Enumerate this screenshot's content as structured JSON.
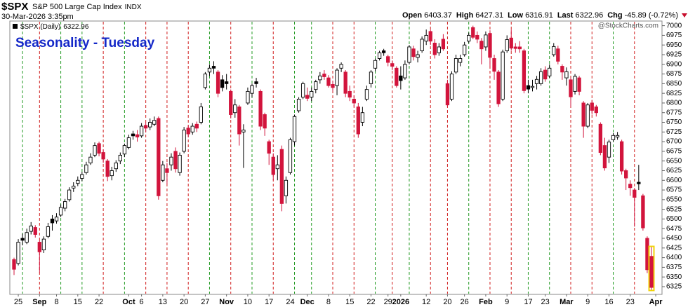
{
  "header": {
    "symbol": "$SPX",
    "name": "S&P 500 Large Cap Index",
    "exchange": "INDX",
    "date": "30-Mar-2026 3:35pm",
    "open_label": "Open",
    "high_label": "High",
    "low_label": "Low",
    "last_label": "Last",
    "change_label": "Chg",
    "change": -45.89,
    "change_pct_label": "(-0.72%)",
    "watermark": "@StockCharts.com"
  },
  "chart_data": {
    "type": "candlestick",
    "title": "Seasonality - Tuesday",
    "categories": [
      null,
      "25",
      null,
      null,
      null,
      null,
      "Sep",
      null,
      null,
      null,
      "8",
      null,
      null,
      null,
      null,
      "15",
      null,
      null,
      null,
      null,
      "22",
      null,
      null,
      null,
      null,
      null,
      null,
      "Oct",
      null,
      null,
      "6",
      null,
      null,
      null,
      null,
      "13",
      null,
      null,
      null,
      null,
      "20",
      null,
      null,
      null,
      null,
      "27",
      null,
      null,
      null,
      null,
      "Nov",
      null,
      null,
      null,
      null,
      "10",
      null,
      null,
      null,
      null,
      "17",
      null,
      null,
      null,
      null,
      "24",
      null,
      null,
      null,
      "Dec",
      null,
      null,
      null,
      null,
      "8",
      null,
      null,
      null,
      null,
      "15",
      null,
      null,
      null,
      null,
      "22",
      null,
      null,
      null,
      "29",
      null,
      null,
      "2026",
      null,
      null,
      null,
      null,
      null,
      "12",
      null,
      null,
      null,
      null,
      "20",
      null,
      null,
      null,
      "26",
      null,
      null,
      null,
      null,
      "Feb",
      null,
      null,
      null,
      null,
      "9",
      null,
      null,
      null,
      null,
      "17",
      null,
      null,
      null,
      "23",
      null,
      null,
      null,
      null,
      "Mar",
      null,
      null,
      null,
      null,
      "9",
      null,
      null,
      null,
      null,
      "16",
      null,
      null,
      null,
      null,
      "23",
      null,
      null,
      null,
      null,
      null,
      "Apr"
    ],
    "series": [
      {
        "name": "$SPX (Daily)",
        "open": [
          6395,
          6385,
          6450,
          6440,
          6468,
          6478,
          6440,
          6420,
          6455,
          6500,
          6495,
          6510,
          6528,
          6550,
          6580,
          6592,
          6605,
          6620,
          6645,
          6665,
          6695,
          6672,
          6650,
          6612,
          6630,
          6650,
          6668,
          6685,
          6720,
          6718,
          6715,
          6742,
          6738,
          6745,
          6760,
          6600,
          6630,
          6640,
          6675,
          6620,
          6675,
          6735,
          6725,
          6745,
          6750,
          6840,
          6880,
          6895,
          6880,
          6860,
          6855,
          6830,
          6775,
          6790,
          6725,
          6800,
          6825,
          6855,
          6830,
          6770,
          6700,
          6660,
          6630,
          6680,
          6560,
          6620,
          6700,
          6780,
          6815,
          6820,
          6815,
          6835,
          6860,
          6875,
          6865,
          6848,
          6845,
          6890,
          6880,
          6830,
          6810,
          6790,
          6750,
          6810,
          6850,
          6890,
          6915,
          6935,
          6920,
          6902,
          6890,
          6870,
          6865,
          6905,
          6940,
          6918,
          6935,
          6960,
          6985,
          6955,
          6930,
          6965,
          6850,
          6810,
          6880,
          6905,
          6925,
          6960,
          6995,
          6975,
          6960,
          6945,
          6980,
          6915,
          6880,
          6810,
          6935,
          6968,
          6945,
          6945,
          6935,
          6845,
          6840,
          6850,
          6850,
          6885,
          6870,
          6925,
          6940,
          6895,
          6865,
          6860,
          6830,
          6865,
          6800,
          6740,
          6800,
          6790,
          6745,
          6690,
          6660,
          6705,
          6712,
          6700,
          6625,
          6590,
          6575,
          6595,
          6560,
          6450,
          6403.37,
          null
        ],
        "high": [
          6400,
          6448,
          6462,
          6475,
          6492,
          6484,
          6445,
          6455,
          6490,
          6510,
          6515,
          6538,
          6552,
          6582,
          6595,
          6610,
          6622,
          6648,
          6670,
          6698,
          6700,
          6680,
          6655,
          6635,
          6652,
          6672,
          6695,
          6718,
          6728,
          6730,
          6748,
          6750,
          6760,
          6765,
          6765,
          6650,
          6645,
          6670,
          6685,
          6672,
          6738,
          6742,
          6748,
          6752,
          6800,
          6880,
          6900,
          6908,
          6885,
          6872,
          6875,
          6835,
          6810,
          6795,
          6745,
          6840,
          6850,
          6865,
          6835,
          6775,
          6705,
          6670,
          6665,
          6690,
          6610,
          6710,
          6770,
          6815,
          6855,
          6840,
          6840,
          6860,
          6880,
          6885,
          6872,
          6858,
          6890,
          6905,
          6885,
          6845,
          6820,
          6800,
          6790,
          6845,
          6885,
          6915,
          6935,
          6940,
          6925,
          6910,
          6895,
          6895,
          6910,
          6950,
          6948,
          6935,
          6972,
          6990,
          6990,
          6965,
          6955,
          6978,
          6860,
          6882,
          6925,
          6925,
          6958,
          6982,
          7000,
          6985,
          6968,
          6985,
          6988,
          6925,
          6885,
          6938,
          6975,
          6990,
          6955,
          6960,
          6940,
          6860,
          6860,
          6870,
          6890,
          6895,
          6900,
          6955,
          6948,
          6900,
          6892,
          6865,
          6875,
          6870,
          6805,
          6800,
          6808,
          6795,
          6750,
          6710,
          6705,
          6722,
          6725,
          6705,
          6630,
          6600,
          6580,
          6640,
          6565,
          6455,
          6427.31,
          null
        ],
        "low": [
          6355,
          6380,
          6432,
          6435,
          6460,
          6452,
          6362,
          6412,
          6450,
          6470,
          6488,
          6505,
          6520,
          6545,
          6570,
          6585,
          6598,
          6615,
          6640,
          6660,
          6662,
          6645,
          6598,
          6600,
          6622,
          6642,
          6660,
          6680,
          6705,
          6700,
          6710,
          6725,
          6730,
          6740,
          6550,
          6595,
          6590,
          6625,
          6620,
          6612,
          6670,
          6712,
          6718,
          6725,
          6745,
          6835,
          6870,
          6875,
          6815,
          6830,
          6835,
          6760,
          6762,
          6690,
          6632,
          6795,
          6815,
          6840,
          6730,
          6715,
          6640,
          6600,
          6600,
          6520,
          6540,
          6615,
          6690,
          6775,
          6810,
          6805,
          6805,
          6825,
          6850,
          6860,
          6840,
          6830,
          6820,
          6880,
          6815,
          6805,
          6790,
          6710,
          6740,
          6805,
          6840,
          6882,
          6910,
          6922,
          6895,
          6885,
          6840,
          6835,
          6860,
          6900,
          6910,
          6905,
          6930,
          6950,
          6950,
          6915,
          6922,
          6935,
          6790,
          6805,
          6875,
          6895,
          6920,
          6955,
          6965,
          6955,
          6900,
          6935,
          6895,
          6860,
          6790,
          6805,
          6930,
          6935,
          6930,
          6930,
          6825,
          6825,
          6830,
          6835,
          6845,
          6855,
          6865,
          6920,
          6900,
          6860,
          6845,
          6790,
          6822,
          6820,
          6710,
          6735,
          6770,
          6765,
          6665,
          6625,
          6645,
          6700,
          6705,
          6615,
          6575,
          6560,
          6480,
          6575,
          6470,
          6360,
          6316.91,
          null
        ],
        "close": [
          6370,
          6440,
          6445,
          6465,
          6482,
          6460,
          6415,
          6448,
          6480,
          6490,
          6505,
          6530,
          6545,
          6575,
          6585,
          6600,
          6615,
          6640,
          6660,
          6690,
          6670,
          6655,
          6610,
          6625,
          6645,
          6665,
          6690,
          6710,
          6715,
          6712,
          6740,
          6735,
          6750,
          6755,
          6560,
          6640,
          6620,
          6660,
          6630,
          6665,
          6730,
          6720,
          6740,
          6735,
          6790,
          6875,
          6890,
          6890,
          6825,
          6840,
          6850,
          6770,
          6795,
          6720,
          6730,
          6830,
          6845,
          6850,
          6740,
          6735,
          6670,
          6615,
          6640,
          6540,
          6600,
          6705,
          6765,
          6810,
          6850,
          6812,
          6830,
          6855,
          6870,
          6868,
          6845,
          6840,
          6885,
          6900,
          6825,
          6815,
          6800,
          6720,
          6775,
          6835,
          6880,
          6910,
          6930,
          6930,
          6905,
          6895,
          6845,
          6858,
          6900,
          6945,
          6920,
          6925,
          6965,
          6975,
          6960,
          6925,
          6945,
          6940,
          6795,
          6875,
          6915,
          6915,
          6950,
          6975,
          6970,
          6965,
          6940,
          6976,
          6918,
          6882,
          6798,
          6932,
          6964,
          6942,
          6941,
          6940,
          6832,
          6836,
          6843,
          6861,
          6881,
          6862,
          6890,
          6946,
          6908,
          6880,
          6881,
          6816,
          6869,
          6830,
          6740,
          6795,
          6781,
          6775,
          6672,
          6632,
          6699,
          6716,
          6716,
          6624,
          6606,
          6581,
          6556,
          6591,
          6477,
          6368.85,
          6322.96,
          null
        ]
      }
    ],
    "tuesdays": [
      2,
      6,
      11,
      16,
      21,
      26,
      31,
      36,
      41,
      46,
      51,
      56,
      61,
      66,
      70,
      75,
      80,
      85,
      89,
      93,
      98,
      102,
      107,
      112,
      117,
      121,
      126,
      131,
      136,
      141,
      146
    ],
    "up_color": "#000000",
    "down_color": "#d2143c",
    "tuesday_up_color": "#229a22",
    "tuesday_down_color": "#d01c1c",
    "highlight_color": "#f0d20a",
    "title_color": "#1428c8",
    "ylim": [
      6305,
      7012
    ],
    "yticks": [
      6325,
      6350,
      6375,
      6400,
      6425,
      6450,
      6475,
      6500,
      6525,
      6550,
      6575,
      6600,
      6625,
      6650,
      6675,
      6700,
      6725,
      6750,
      6775,
      6800,
      6825,
      6850,
      6875,
      6900,
      6925,
      6950,
      6975,
      7000
    ]
  }
}
